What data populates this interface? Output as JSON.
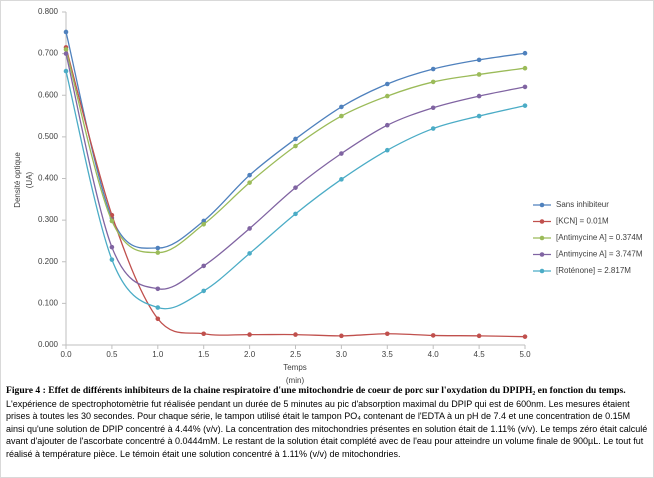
{
  "chart_data": {
    "type": "line",
    "ylabel": [
      "Densité optique",
      "(UA)"
    ],
    "xlabel": [
      "Temps",
      "(min)"
    ],
    "x": [
      0,
      0.5,
      1,
      1.5,
      2,
      2.5,
      3,
      3.5,
      4,
      4.5,
      5
    ],
    "xlim": [
      0,
      5
    ],
    "xticks": [
      {
        "value": 0,
        "label": "0.0"
      },
      0.5,
      {
        "value": 1,
        "label": "1.0"
      },
      1.5,
      {
        "value": 2,
        "label": "2.0"
      },
      2.5,
      {
        "value": 3,
        "label": "3.0"
      },
      3.5,
      {
        "value": 4,
        "label": "4.0"
      },
      4.5,
      {
        "value": 5,
        "label": "5.0"
      }
    ],
    "ylim": [
      0,
      0.8
    ],
    "yticks": [
      {
        "value": 0,
        "label": "0.000"
      },
      {
        "value": 0.1,
        "label": "0.100"
      },
      {
        "value": 0.2,
        "label": "0.200"
      },
      {
        "value": 0.3,
        "label": "0.300"
      },
      {
        "value": 0.4,
        "label": "0.400"
      },
      {
        "value": 0.5,
        "label": "0.500"
      },
      {
        "value": 0.6,
        "label": "0.600"
      },
      {
        "value": 0.7,
        "label": "0.700"
      },
      {
        "value": 0.8,
        "label": "0.800"
      }
    ],
    "series": [
      {
        "name": "Sans inhibiteur",
        "color": "#4f81bd",
        "values": [
          0.752,
          0.305,
          0.233,
          0.298,
          0.408,
          0.495,
          0.572,
          0.627,
          0.663,
          0.685,
          0.701
        ]
      },
      {
        "name": "[KCN] = 0.01M",
        "color": "#c0504d",
        "values": [
          0.715,
          0.312,
          0.063,
          0.027,
          0.025,
          0.025,
          0.022,
          0.027,
          0.023,
          0.022,
          0.02
        ]
      },
      {
        "name": "[Antimycine A] = 0.374M",
        "color": "#9bbb59",
        "values": [
          0.71,
          0.298,
          0.222,
          0.29,
          0.39,
          0.478,
          0.55,
          0.598,
          0.632,
          0.65,
          0.665
        ]
      },
      {
        "name": "[Antimycine A] = 3.747M",
        "color": "#8064a2",
        "values": [
          0.7,
          0.235,
          0.135,
          0.19,
          0.28,
          0.378,
          0.46,
          0.528,
          0.57,
          0.598,
          0.62
        ]
      },
      {
        "name": "[Roténone] = 2.817M",
        "color": "#4bacc6",
        "values": [
          0.658,
          0.205,
          0.09,
          0.13,
          0.22,
          0.315,
          0.398,
          0.468,
          0.52,
          0.55,
          0.575
        ]
      }
    ],
    "caption": {
      "title": "Figure 4 : Effet de différents inhibiteurs de la chaine respiratoire d'une mitochondrie de coeur de porc sur l'oxydation du DPIPH₂ en fonction du temps.",
      "body": "L'expérience de spectrophotomètrie fut réalisée pendant un durée de 5 minutes au pic d'absorption maximal du DPIP qui est de 600nm. Les mesures étaient prises à toutes les 30 secondes. Pour chaque série, le tampon utilisé était le tampon PO₄ contenant de l'EDTA à un pH de 7.4 et une concentration de 0.15M ainsi qu'une solution de DPIP concentré à 4.44% (v/v). La concentration des mitochondries présentes en solution était de 1.11% (v/v). Le temps zéro était calculé avant d'ajouter de l'ascorbate concentré à 0.0444mM. Le restant de la solution était complété avec de l'eau pour atteindre un volume finale de 900µL. Le tout fut réalisé à température pièce. Le témoin était une solution concentré à 1.11% (v/v) de mitochondries."
    }
  }
}
